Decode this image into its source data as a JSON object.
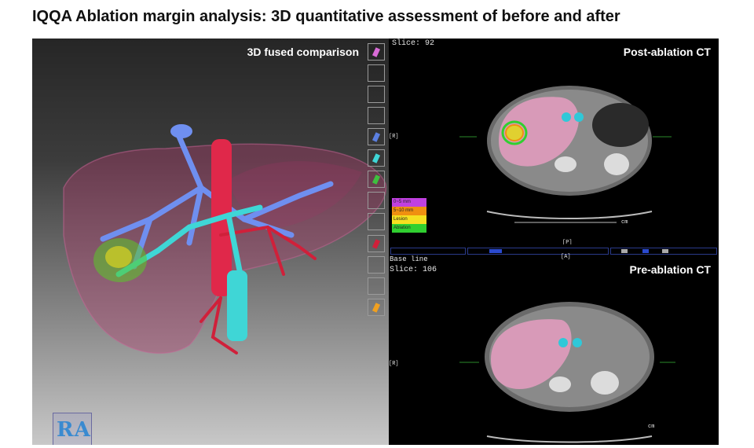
{
  "title": "IQQA Ablation margin analysis: 3D quantitative assessment of before and after",
  "viewer3d": {
    "label": "3D fused comparison",
    "cube_letters": "RA"
  },
  "toolbar": {
    "buttons": [
      {
        "name": "cube-view-button",
        "icon": "magenta-cube-icon",
        "color": "#d86bd6"
      },
      {
        "name": "layer-toggle-1",
        "icon": "empty-swatch-icon",
        "color": ""
      },
      {
        "name": "layer-toggle-2",
        "icon": "empty-swatch-icon",
        "color": ""
      },
      {
        "name": "layer-toggle-3",
        "icon": "empty-swatch-icon",
        "color": ""
      },
      {
        "name": "portal-vein-toggle",
        "icon": "blue-vessel-icon",
        "color": "#5b7fe0"
      },
      {
        "name": "hepatic-vein-toggle",
        "icon": "cyan-vessel-icon",
        "color": "#3fd6d6"
      },
      {
        "name": "lesion-toggle",
        "icon": "green-cube-icon",
        "color": "#3fbf3f"
      },
      {
        "name": "layer-toggle-4",
        "icon": "empty-swatch-icon",
        "color": ""
      },
      {
        "name": "layer-toggle-5",
        "icon": "empty-swatch-icon",
        "color": ""
      },
      {
        "name": "artery-toggle",
        "icon": "red-vessel-icon",
        "color": "#d0203a"
      },
      {
        "name": "layer-toggle-6",
        "icon": "empty-swatch-icon",
        "color": ""
      },
      {
        "name": "layer-toggle-7",
        "icon": "empty-swatch-icon",
        "color": ""
      },
      {
        "name": "ablation-toggle",
        "icon": "orange-cube-icon",
        "color": "#f0a020"
      }
    ]
  },
  "post": {
    "label": "Post-ablation CT",
    "slice": "Slice: 92",
    "orient_left": "[R]",
    "orient_bottom": "[P]",
    "orient_top_lower": "[A]",
    "scale_unit": "cm",
    "legend": [
      {
        "text": "0~5 mm",
        "color": "#c040e0"
      },
      {
        "text": "5~10 mm",
        "color": "#f09010"
      },
      {
        "text": "Lesion",
        "color": "#f5e020"
      },
      {
        "text": "Ablation",
        "color": "#30d030"
      }
    ]
  },
  "pre": {
    "label": "Pre-ablation CT",
    "baseline": "Base line",
    "slice": "Slice: 106",
    "orient_left": "[R]",
    "scale_unit": "cm"
  }
}
